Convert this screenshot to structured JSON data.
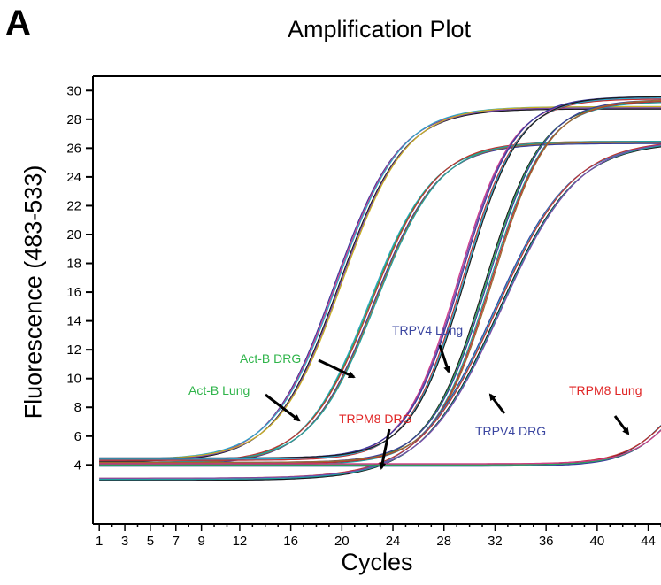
{
  "panel_letter": "A",
  "chart_data": {
    "type": "line",
    "title": "Amplification Plot",
    "xlabel": "Cycles",
    "ylabel": "Fluorescence (483-533)",
    "xlim": [
      0.5,
      45
    ],
    "ylim": [
      1.5,
      31
    ],
    "x_ticks": [
      1,
      3,
      5,
      7,
      9,
      12,
      16,
      20,
      24,
      28,
      32,
      36,
      40,
      44
    ],
    "y_ticks": [
      4,
      6,
      8,
      10,
      12,
      14,
      16,
      18,
      20,
      22,
      24,
      26,
      28,
      30
    ],
    "grid": false,
    "legend": "none",
    "series": [
      {
        "group": "Act-B Lung",
        "baseline": 4.3,
        "plateau": 28.8,
        "midpoint": 19.7,
        "slope": 2.5,
        "colors": [
          "#3a3a9a",
          "#d03a8a",
          "#2aa6c8",
          "#1a1a1a",
          "#7a4aa8",
          "#c8b020"
        ]
      },
      {
        "group": "Act-B DRG",
        "baseline": 4.1,
        "plateau": 26.4,
        "midpoint": 22.4,
        "slope": 2.5,
        "colors": [
          "#2aa6c8",
          "#2aa860",
          "#c03030",
          "#3a3a9a",
          "#9a6a30",
          "#20a0a0"
        ]
      },
      {
        "group": "TRPV4 Lung",
        "baseline": 4.4,
        "plateau": 29.5,
        "midpoint": 29.4,
        "slope": 2.1,
        "colors": [
          "#d03a8a",
          "#7a4aa8",
          "#3a3a9a",
          "#c03030",
          "#2aa6c8",
          "#1a1a1a"
        ]
      },
      {
        "group": "TRPV4 DRG",
        "baseline": 4.1,
        "plateau": 29.3,
        "midpoint": 31.5,
        "slope": 2.2,
        "colors": [
          "#1a1a1a",
          "#2aa860",
          "#3a3a9a",
          "#20a0a0",
          "#c03030",
          "#9a6a30"
        ]
      },
      {
        "group": "TRPM8 DRG",
        "baseline": 3.0,
        "plateau": 26.5,
        "midpoint": 32.2,
        "slope": 3.0,
        "colors": [
          "#3a3a9a",
          "#2aa6c8",
          "#c03030",
          "#1a1a1a",
          "#20a0a0",
          "#7a4aa8"
        ]
      },
      {
        "group": "TRPM8 Lung",
        "baseline": 4.0,
        "plateau": 12.0,
        "midpoint": 46.5,
        "slope": 2.0,
        "colors": [
          "#2aa6c8",
          "#1a1a1a",
          "#c03030",
          "#3a3a9a",
          "#2aa860",
          "#d03a8a"
        ]
      }
    ],
    "annotations": [
      {
        "text": "Act-B Lung",
        "color": "#2fb44a"
      },
      {
        "text": "Act-B DRG",
        "color": "#2fb44a"
      },
      {
        "text": "TRPV4 Lung",
        "color": "#3a45a0"
      },
      {
        "text": "TRPM8 DRG",
        "color": "#e02424"
      },
      {
        "text": "TRPV4 DRG",
        "color": "#3a45a0"
      },
      {
        "text": "TRPM8 Lung",
        "color": "#e02424"
      }
    ]
  }
}
